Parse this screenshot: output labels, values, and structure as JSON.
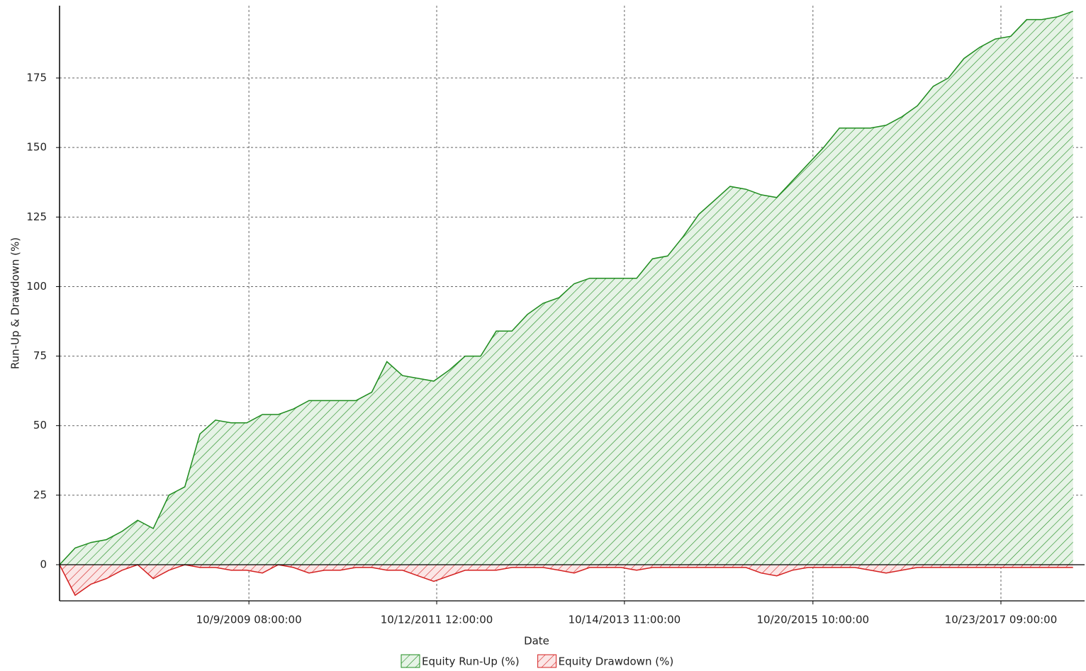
{
  "chart_data": {
    "type": "area",
    "xlabel": "Date",
    "ylabel": "Run-Up & Drawdown (%)",
    "x": [
      "2007-10-01",
      "2007-12-01",
      "2008-02-01",
      "2008-04-01",
      "2008-06-01",
      "2008-08-01",
      "2008-10-01",
      "2008-12-01",
      "2009-02-01",
      "2009-04-01",
      "2009-06-01",
      "2009-08-01",
      "2009-10-01",
      "2009-12-01",
      "2010-02-01",
      "2010-04-01",
      "2010-06-01",
      "2010-08-01",
      "2010-10-01",
      "2010-12-01",
      "2011-02-01",
      "2011-04-01",
      "2011-06-01",
      "2011-08-01",
      "2011-10-01",
      "2011-12-01",
      "2012-02-01",
      "2012-04-01",
      "2012-06-01",
      "2012-08-01",
      "2012-10-01",
      "2012-12-01",
      "2013-02-01",
      "2013-04-01",
      "2013-06-01",
      "2013-08-01",
      "2013-10-01",
      "2013-12-01",
      "2014-02-01",
      "2014-04-01",
      "2014-06-01",
      "2014-08-01",
      "2014-10-01",
      "2014-12-01",
      "2015-02-01",
      "2015-04-01",
      "2015-06-01",
      "2015-08-01",
      "2015-10-01",
      "2015-12-01",
      "2016-02-01",
      "2016-04-01",
      "2016-06-01",
      "2016-08-01",
      "2016-10-01",
      "2016-12-01",
      "2017-02-01",
      "2017-04-01",
      "2017-06-01",
      "2017-08-01",
      "2017-10-01",
      "2017-12-01",
      "2018-02-01",
      "2018-04-01",
      "2018-06-01",
      "2018-08-01"
    ],
    "series": [
      {
        "name": "Equity Run-Up (%)",
        "color": "#1e8c1e",
        "values": [
          0,
          6,
          8,
          9,
          12,
          16,
          13,
          25,
          28,
          47,
          52,
          51,
          51,
          54,
          54,
          56,
          59,
          59,
          59,
          59,
          62,
          73,
          68,
          67,
          66,
          70,
          75,
          75,
          84,
          84,
          90,
          94,
          96,
          101,
          103,
          103,
          103,
          103,
          110,
          111,
          118,
          126,
          131,
          136,
          135,
          133,
          132,
          138,
          144,
          150,
          157,
          157,
          157,
          158,
          161,
          165,
          172,
          175,
          182,
          186,
          189,
          190,
          196,
          196,
          197,
          199
        ]
      },
      {
        "name": "Equity Drawdown (%)",
        "color": "#d42020",
        "values": [
          0,
          -11,
          -7,
          -5,
          -2,
          0,
          -5,
          -2,
          0,
          -1,
          -1,
          -2,
          -2,
          -3,
          0,
          -1,
          -3,
          -2,
          -2,
          -1,
          -1,
          -2,
          -2,
          -4,
          -6,
          -4,
          -2,
          -2,
          -2,
          -1,
          -1,
          -1,
          -2,
          -3,
          -1,
          -1,
          -1,
          -2,
          -1,
          -1,
          -1,
          -1,
          -1,
          -1,
          -1,
          -3,
          -4,
          -2,
          -1,
          -1,
          -1,
          -1,
          -2,
          -3,
          -2,
          -1,
          -1,
          -1,
          -1,
          -1,
          -1,
          -1,
          -1,
          -1,
          -1,
          -1
        ]
      }
    ],
    "xlim": [
      "2007-10-01",
      "2018-09-15"
    ],
    "xticks": [
      {
        "value": "2009-10-09T08:00:00",
        "label": "10/9/2009 08:00:00"
      },
      {
        "value": "2011-10-12T12:00:00",
        "label": "10/12/2011 12:00:00"
      },
      {
        "value": "2013-10-14T11:00:00",
        "label": "10/14/2013 11:00:00"
      },
      {
        "value": "2015-10-20T10:00:00",
        "label": "10/20/2015 10:00:00"
      },
      {
        "value": "2017-10-23T09:00:00",
        "label": "10/23/2017 09:00:00"
      }
    ],
    "ylim": [
      -13,
      201
    ],
    "yticks": [
      0,
      25,
      50,
      75,
      100,
      125,
      150,
      175
    ],
    "grid": true,
    "legend": "bottom"
  }
}
